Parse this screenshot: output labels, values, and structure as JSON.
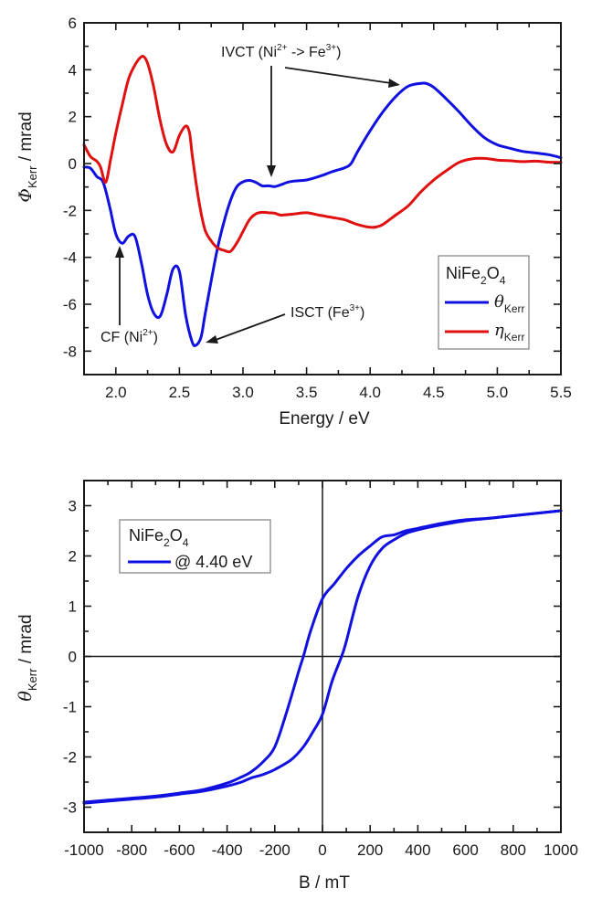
{
  "colors": {
    "theta": "#1010e0",
    "eta": "#e01010",
    "axis": "#1a1a1a",
    "legend_border": "#666666"
  },
  "chart_data": [
    {
      "type": "line",
      "title": "",
      "xlabel": "Energy / eV",
      "ylabel_symbol": "Φ",
      "ylabel_sub": "Kerr",
      "ylabel_unit": " / mrad",
      "xlim": [
        1.75,
        5.5
      ],
      "ylim": [
        -9,
        6
      ],
      "xticks": [
        2.0,
        2.5,
        3.0,
        3.5,
        4.0,
        4.5,
        5.0,
        5.5
      ],
      "xtick_labels": [
        "2.0",
        "2.5",
        "3.0",
        "3.5",
        "4.0",
        "4.5",
        "5.0",
        "5.5"
      ],
      "yticks": [
        -8,
        -6,
        -4,
        -2,
        0,
        2,
        4,
        6
      ],
      "ytick_labels": [
        "-8",
        "-6",
        "-4",
        "-2",
        "0",
        "2",
        "4",
        "6"
      ],
      "grid": false,
      "legend": {
        "placement": "lower-right",
        "title_main": "NiFe",
        "title_sub1": "2",
        "title_mid": "O",
        "title_sub2": "4",
        "entries": [
          {
            "symbol": "θ",
            "sub": "Kerr",
            "series": "theta"
          },
          {
            "symbol": "η",
            "sub": "Kerr",
            "series": "eta"
          }
        ]
      },
      "annotations": [
        {
          "label_main": "IVCT (Ni",
          "sup1": "2+",
          "mid": " -> Fe",
          "sup2": "3+",
          "end": ")",
          "targets": [
            [
              3.23,
              -0.7
            ],
            [
              4.3,
              3.2
            ]
          ]
        },
        {
          "label_main": "CF (Ni",
          "sup1": "2+",
          "end": ")",
          "targets": [
            [
              2.05,
              -3.2
            ]
          ]
        },
        {
          "label_main": "ISCT (Fe",
          "sup1": "3+",
          "end": ")",
          "targets": [
            [
              2.67,
              -7.6
            ]
          ]
        }
      ],
      "series": [
        {
          "name": "theta_Kerr",
          "key": "theta",
          "x": [
            1.75,
            1.8,
            1.85,
            1.9,
            1.95,
            2.0,
            2.05,
            2.1,
            2.15,
            2.2,
            2.25,
            2.3,
            2.35,
            2.4,
            2.45,
            2.5,
            2.55,
            2.6,
            2.63,
            2.67,
            2.7,
            2.75,
            2.8,
            2.85,
            2.9,
            2.95,
            3.0,
            3.05,
            3.1,
            3.15,
            3.2,
            3.25,
            3.3,
            3.35,
            3.4,
            3.5,
            3.6,
            3.7,
            3.8,
            3.85,
            3.9,
            4.0,
            4.1,
            4.2,
            4.3,
            4.4,
            4.45,
            4.5,
            4.6,
            4.7,
            4.8,
            4.9,
            5.0,
            5.1,
            5.2,
            5.3,
            5.4,
            5.5
          ],
          "y": [
            -0.15,
            -0.2,
            -0.55,
            -0.8,
            -1.8,
            -3.0,
            -3.4,
            -3.1,
            -3.1,
            -4.2,
            -5.6,
            -6.4,
            -6.5,
            -5.6,
            -4.5,
            -4.6,
            -6.5,
            -7.6,
            -7.75,
            -7.4,
            -6.5,
            -5.0,
            -3.6,
            -2.5,
            -1.6,
            -1.0,
            -0.78,
            -0.72,
            -0.8,
            -0.95,
            -0.95,
            -0.98,
            -0.9,
            -0.8,
            -0.75,
            -0.7,
            -0.55,
            -0.35,
            -0.18,
            0.0,
            0.5,
            1.4,
            2.2,
            2.85,
            3.3,
            3.42,
            3.4,
            3.25,
            2.75,
            2.2,
            1.6,
            1.1,
            0.8,
            0.65,
            0.52,
            0.45,
            0.38,
            0.25
          ]
        },
        {
          "name": "eta_Kerr",
          "key": "eta",
          "x": [
            1.75,
            1.8,
            1.85,
            1.88,
            1.92,
            1.96,
            2.0,
            2.05,
            2.1,
            2.15,
            2.2,
            2.23,
            2.26,
            2.3,
            2.35,
            2.4,
            2.45,
            2.5,
            2.55,
            2.58,
            2.6,
            2.65,
            2.7,
            2.75,
            2.8,
            2.85,
            2.9,
            2.95,
            3.0,
            3.05,
            3.1,
            3.15,
            3.2,
            3.25,
            3.3,
            3.4,
            3.5,
            3.6,
            3.7,
            3.8,
            3.9,
            4.0,
            4.05,
            4.1,
            4.2,
            4.3,
            4.4,
            4.5,
            4.6,
            4.7,
            4.8,
            4.9,
            5.0,
            5.1,
            5.2,
            5.3,
            5.4,
            5.5
          ],
          "y": [
            0.8,
            0.3,
            0.1,
            -0.15,
            -0.8,
            0.2,
            1.3,
            2.5,
            3.6,
            4.2,
            4.55,
            4.5,
            4.1,
            3.2,
            1.8,
            0.8,
            0.5,
            1.2,
            1.6,
            1.3,
            0.4,
            -1.5,
            -2.8,
            -3.3,
            -3.6,
            -3.7,
            -3.75,
            -3.4,
            -2.9,
            -2.4,
            -2.15,
            -2.08,
            -2.1,
            -2.12,
            -2.2,
            -2.15,
            -2.1,
            -2.2,
            -2.3,
            -2.4,
            -2.6,
            -2.72,
            -2.7,
            -2.6,
            -2.2,
            -1.8,
            -1.2,
            -0.7,
            -0.3,
            0.05,
            0.2,
            0.22,
            0.15,
            0.12,
            0.08,
            0.1,
            0.06,
            0.05
          ]
        }
      ]
    },
    {
      "type": "line",
      "title": "",
      "xlabel": "B / mT",
      "ylabel_symbol": "θ",
      "ylabel_sub": "Kerr",
      "ylabel_unit": " / mrad",
      "xlim": [
        -1000,
        1000
      ],
      "ylim": [
        -3.5,
        3.5
      ],
      "xticks": [
        -1000,
        -800,
        -600,
        -400,
        -200,
        0,
        200,
        400,
        600,
        800,
        1000
      ],
      "xtick_labels": [
        "-1000",
        "-800",
        "-600",
        "-400",
        "-200",
        "0",
        "200",
        "400",
        "600",
        "800",
        "1000"
      ],
      "yticks": [
        -3,
        -2,
        -1,
        0,
        1,
        2,
        3
      ],
      "ytick_labels": [
        "-3",
        "-2",
        "-1",
        "0",
        "1",
        "2",
        "3"
      ],
      "grid": false,
      "zero_lines": true,
      "legend": {
        "placement": "top-left",
        "title_main": "NiFe",
        "title_sub1": "2",
        "title_mid": "O",
        "title_sub2": "4",
        "entries": [
          {
            "label": "@ 4.40 eV",
            "series": "loop"
          }
        ]
      },
      "series": [
        {
          "name": "descending branch",
          "key": "theta",
          "x": [
            1000,
            900,
            800,
            700,
            600,
            500,
            400,
            350,
            300,
            250,
            200,
            150,
            100,
            50,
            0,
            -50,
            -80,
            -100,
            -150,
            -200,
            -250,
            -300,
            -340,
            -400,
            -500,
            -600,
            -700,
            -800,
            -900,
            -1000
          ],
          "y": [
            2.9,
            2.85,
            2.8,
            2.75,
            2.72,
            2.65,
            2.55,
            2.5,
            2.42,
            2.38,
            2.2,
            2.0,
            1.75,
            1.45,
            1.15,
            0.5,
            0.0,
            -0.3,
            -1.1,
            -1.8,
            -2.1,
            -2.3,
            -2.4,
            -2.52,
            -2.65,
            -2.72,
            -2.78,
            -2.82,
            -2.86,
            -2.9
          ]
        },
        {
          "name": "ascending branch",
          "key": "theta",
          "x": [
            -1000,
            -900,
            -800,
            -700,
            -600,
            -500,
            -400,
            -340,
            -300,
            -250,
            -200,
            -130,
            -80,
            -40,
            0,
            40,
            80,
            100,
            150,
            200,
            250,
            300,
            350,
            400,
            500,
            600,
            700,
            800,
            900,
            1000
          ],
          "y": [
            -2.92,
            -2.88,
            -2.84,
            -2.8,
            -2.74,
            -2.68,
            -2.58,
            -2.5,
            -2.42,
            -2.35,
            -2.25,
            -2.05,
            -1.8,
            -1.5,
            -1.15,
            -0.5,
            0.0,
            0.3,
            1.2,
            1.8,
            2.15,
            2.32,
            2.45,
            2.52,
            2.62,
            2.7,
            2.75,
            2.8,
            2.85,
            2.9
          ]
        }
      ]
    }
  ]
}
